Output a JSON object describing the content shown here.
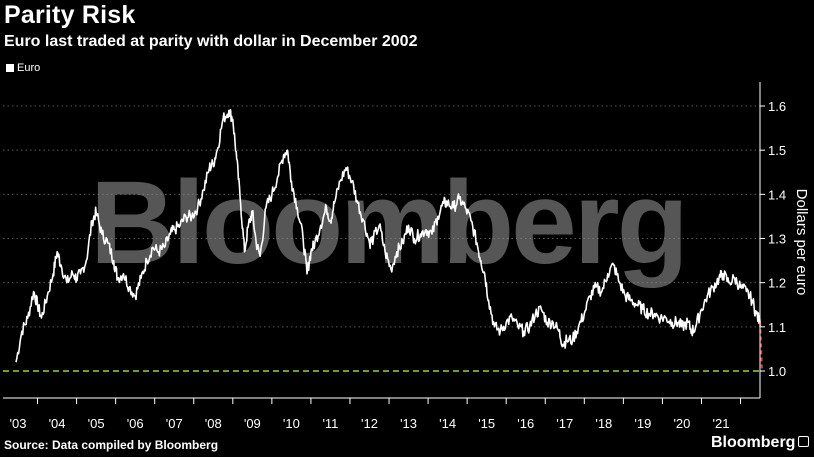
{
  "title": "Parity Risk",
  "subtitle": "Euro last traded at parity with dollar in December 2002",
  "source": "Source: Data compiled by Bloomberg",
  "brand": "Bloomberg",
  "watermark": "Bloomberg",
  "colors": {
    "background": "#000000",
    "line": "#ffffff",
    "projection": "#e8364a",
    "parity": "#8fd83a",
    "grid": "#5a5a5a"
  },
  "chart_data": {
    "type": "line",
    "title": "Parity Risk",
    "subtitle": "Euro last traded at parity with dollar in December 2002",
    "ylabel": "Dollars per euro",
    "xlabel": "",
    "ylim": [
      0.93,
      1.64
    ],
    "xlim": [
      2002.9,
      2022.05
    ],
    "yticks": [
      1.0,
      1.1,
      1.2,
      1.3,
      1.4,
      1.5,
      1.6
    ],
    "ytick_labels": [
      "1.0",
      "1.1",
      "1.2",
      "1.3",
      "1.4",
      "1.5",
      "1.6"
    ],
    "xticks": [
      2003,
      2004,
      2005,
      2006,
      2007,
      2008,
      2009,
      2010,
      2011,
      2012,
      2013,
      2014,
      2015,
      2016,
      2017,
      2018,
      2019,
      2020,
      2021
    ],
    "xtick_labels": [
      "'03",
      "'04",
      "'05",
      "'06",
      "'07",
      "'08",
      "'09",
      "'10",
      "'11",
      "'12",
      "'13",
      "'14",
      "'15",
      "'16",
      "'17",
      "'18",
      "'19",
      "'20",
      "'21"
    ],
    "grid": "horizontal-dotted",
    "legend": {
      "position": "top-left",
      "entries": [
        "Euro"
      ]
    },
    "series": [
      {
        "name": "Euro",
        "x": [
          2002.95,
          2003.1,
          2003.25,
          2003.4,
          2003.5,
          2003.6,
          2003.75,
          2003.9,
          2004.0,
          2004.1,
          2004.25,
          2004.4,
          2004.5,
          2004.6,
          2004.75,
          2004.9,
          2005.0,
          2005.15,
          2005.3,
          2005.45,
          2005.55,
          2005.7,
          2005.85,
          2006.0,
          2006.15,
          2006.3,
          2006.45,
          2006.6,
          2006.75,
          2006.9,
          2007.0,
          2007.15,
          2007.3,
          2007.45,
          2007.6,
          2007.75,
          2007.9,
          2008.0,
          2008.1,
          2008.25,
          2008.4,
          2008.5,
          2008.6,
          2008.7,
          2008.8,
          2008.9,
          2009.0,
          2009.1,
          2009.2,
          2009.35,
          2009.5,
          2009.65,
          2009.8,
          2009.9,
          2010.0,
          2010.15,
          2010.3,
          2010.4,
          2010.5,
          2010.6,
          2010.75,
          2010.9,
          2011.0,
          2011.1,
          2011.25,
          2011.4,
          2011.55,
          2011.7,
          2011.85,
          2012.0,
          2012.1,
          2012.25,
          2012.4,
          2012.55,
          2012.7,
          2012.85,
          2013.0,
          2013.15,
          2013.3,
          2013.45,
          2013.6,
          2013.75,
          2013.9,
          2014.0,
          2014.15,
          2014.3,
          2014.45,
          2014.6,
          2014.75,
          2014.85,
          2014.95,
          2015.05,
          2015.2,
          2015.35,
          2015.5,
          2015.65,
          2015.8,
          2015.95,
          2016.1,
          2016.25,
          2016.4,
          2016.55,
          2016.7,
          2016.85,
          2016.95,
          2017.05,
          2017.2,
          2017.35,
          2017.5,
          2017.65,
          2017.8,
          2017.95,
          2018.1,
          2018.25,
          2018.4,
          2018.55,
          2018.7,
          2018.85,
          2019.0,
          2019.15,
          2019.3,
          2019.45,
          2019.6,
          2019.75,
          2019.9,
          2020.0,
          2020.15,
          2020.25,
          2020.35,
          2020.5,
          2020.65,
          2020.8,
          2020.95,
          2021.05,
          2021.2,
          2021.35,
          2021.5,
          2021.65,
          2021.8,
          2021.9,
          2022.0
        ],
        "y": [
          1.02,
          1.09,
          1.12,
          1.18,
          1.15,
          1.12,
          1.17,
          1.22,
          1.27,
          1.24,
          1.2,
          1.22,
          1.21,
          1.22,
          1.25,
          1.34,
          1.36,
          1.31,
          1.29,
          1.25,
          1.21,
          1.22,
          1.19,
          1.17,
          1.21,
          1.25,
          1.28,
          1.27,
          1.28,
          1.31,
          1.32,
          1.33,
          1.35,
          1.35,
          1.37,
          1.41,
          1.46,
          1.47,
          1.5,
          1.57,
          1.59,
          1.57,
          1.48,
          1.38,
          1.27,
          1.33,
          1.36,
          1.29,
          1.26,
          1.37,
          1.4,
          1.44,
          1.49,
          1.5,
          1.43,
          1.37,
          1.3,
          1.22,
          1.27,
          1.29,
          1.33,
          1.37,
          1.34,
          1.38,
          1.43,
          1.46,
          1.43,
          1.38,
          1.34,
          1.29,
          1.3,
          1.33,
          1.27,
          1.23,
          1.27,
          1.29,
          1.33,
          1.3,
          1.31,
          1.32,
          1.31,
          1.35,
          1.38,
          1.38,
          1.37,
          1.39,
          1.37,
          1.34,
          1.29,
          1.25,
          1.22,
          1.16,
          1.1,
          1.09,
          1.11,
          1.12,
          1.1,
          1.09,
          1.1,
          1.13,
          1.14,
          1.11,
          1.11,
          1.09,
          1.06,
          1.07,
          1.07,
          1.1,
          1.13,
          1.17,
          1.19,
          1.18,
          1.22,
          1.24,
          1.2,
          1.17,
          1.16,
          1.15,
          1.14,
          1.13,
          1.13,
          1.12,
          1.12,
          1.11,
          1.11,
          1.1,
          1.11,
          1.09,
          1.1,
          1.14,
          1.17,
          1.19,
          1.21,
          1.22,
          1.2,
          1.21,
          1.19,
          1.18,
          1.16,
          1.13,
          1.11
        ]
      },
      {
        "name": "",
        "style": "dashed",
        "x": [
          2022.0,
          2022.05
        ],
        "y": [
          1.11,
          1.0
        ]
      }
    ],
    "reference_lines": [
      {
        "orientation": "horizontal",
        "y": 1.0,
        "style": "dashed"
      }
    ]
  }
}
